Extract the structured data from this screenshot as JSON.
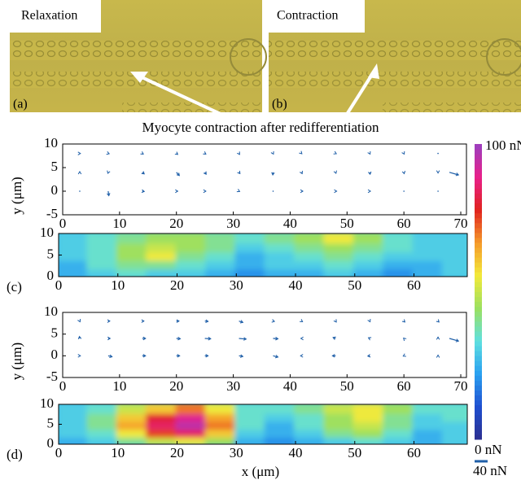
{
  "title": "Myocyte contraction after redifferentiation",
  "photos": [
    {
      "label": "Relaxation",
      "tag": "(a)"
    },
    {
      "label": "Contraction",
      "tag": "(b)"
    }
  ],
  "chart_data": [
    {
      "type": "quiver",
      "ylabel": "y (μm)",
      "color": "#1f5fa8",
      "xlim": [
        0,
        71
      ],
      "ylim": [
        -5,
        10
      ],
      "xticks": [
        0,
        10,
        20,
        30,
        40,
        50,
        60,
        70
      ],
      "yticks": [
        -5,
        0,
        5,
        10
      ],
      "x": [
        3,
        8,
        14,
        20,
        25,
        31,
        37,
        42,
        48,
        54,
        60,
        66,
        3,
        8,
        14,
        20,
        25,
        31,
        37,
        42,
        48,
        54,
        60,
        66,
        3,
        8,
        14,
        20,
        25,
        31,
        37,
        42,
        48,
        54,
        60,
        66,
        68
      ],
      "y": [
        8,
        8,
        8,
        8,
        8,
        8,
        8,
        8,
        8,
        8,
        8,
        8,
        4,
        4,
        4,
        4,
        4,
        4,
        4,
        4,
        4,
        4,
        4,
        4,
        0,
        0,
        0,
        0,
        0,
        0,
        0,
        0,
        0,
        0,
        0,
        0,
        4
      ],
      "u": [
        2,
        3,
        3,
        4,
        3,
        2,
        1,
        1,
        2,
        1,
        1,
        0,
        0,
        -1,
        6,
        9,
        4,
        3,
        -1,
        2,
        1,
        1,
        1,
        0,
        1,
        2,
        6,
        4,
        3,
        2,
        1,
        4,
        3,
        2,
        1,
        1,
        28
      ],
      "v": [
        0,
        -1,
        -2,
        -3,
        -2,
        -3,
        -2,
        -1,
        -1,
        -2,
        -2,
        -1,
        2,
        -3,
        -5,
        -10,
        -6,
        -4,
        -8,
        -4,
        -3,
        -6,
        -4,
        -2,
        0,
        -14,
        -1,
        0,
        0,
        -1,
        0,
        0,
        0,
        0,
        0,
        0,
        -8
      ]
    },
    {
      "type": "heatmap",
      "panel": "(c)",
      "xlim": [
        0,
        69
      ],
      "ylim": [
        0,
        10
      ],
      "xticks": [
        0,
        10,
        20,
        30,
        40,
        50,
        60
      ],
      "yticks": [
        0,
        5,
        10
      ],
      "x": [
        2.5,
        7.5,
        12.5,
        17.5,
        22.5,
        27.5,
        32.5,
        37.5,
        42.5,
        47.5,
        52.5,
        57.5,
        62.5,
        67.5
      ],
      "y": [
        1,
        3,
        5,
        7,
        9
      ],
      "z": [
        [
          25,
          30,
          35,
          30,
          30,
          25,
          20,
          25,
          25,
          30,
          25,
          20,
          25,
          30
        ],
        [
          25,
          35,
          40,
          40,
          35,
          30,
          25,
          30,
          30,
          35,
          30,
          25,
          25,
          30
        ],
        [
          30,
          35,
          45,
          55,
          40,
          35,
          25,
          30,
          35,
          40,
          35,
          30,
          30,
          30
        ],
        [
          30,
          35,
          45,
          50,
          45,
          40,
          30,
          35,
          40,
          45,
          40,
          35,
          30,
          30
        ],
        [
          30,
          35,
          40,
          45,
          45,
          40,
          35,
          40,
          45,
          55,
          45,
          35,
          30,
          30
        ]
      ]
    },
    {
      "type": "quiver",
      "ylabel": "y (μm)",
      "color": "#1f5fa8",
      "xlim": [
        0,
        71
      ],
      "ylim": [
        -5,
        10
      ],
      "xticks": [
        0,
        10,
        20,
        30,
        40,
        50,
        60,
        70
      ],
      "yticks": [
        -5,
        0,
        5,
        10
      ],
      "x": [
        3,
        8,
        14,
        20,
        25,
        31,
        37,
        42,
        48,
        54,
        60,
        66,
        3,
        8,
        14,
        20,
        25,
        31,
        37,
        42,
        48,
        54,
        60,
        66,
        3,
        8,
        14,
        20,
        25,
        31,
        37,
        42,
        48,
        54,
        60,
        66,
        68
      ],
      "y": [
        8,
        8,
        8,
        8,
        8,
        8,
        8,
        8,
        8,
        8,
        8,
        8,
        4,
        4,
        4,
        4,
        4,
        4,
        4,
        4,
        4,
        4,
        4,
        4,
        0,
        0,
        0,
        0,
        0,
        0,
        0,
        0,
        0,
        0,
        0,
        0,
        4
      ],
      "u": [
        1,
        5,
        5,
        8,
        10,
        12,
        4,
        3,
        2,
        1,
        3,
        3,
        -1,
        6,
        10,
        12,
        18,
        22,
        15,
        -2,
        -8,
        -4,
        -1,
        0,
        2,
        12,
        10,
        10,
        10,
        12,
        15,
        -3,
        -10,
        -6,
        -2,
        0,
        28
      ],
      "v": [
        -2,
        0,
        0,
        0,
        -1,
        -4,
        -1,
        -2,
        -3,
        -2,
        -3,
        -3,
        6,
        0,
        0,
        -1,
        -1,
        -2,
        -1,
        0,
        3,
        2,
        1,
        4,
        0,
        -3,
        0,
        0,
        0,
        -2,
        -4,
        0,
        0,
        -1,
        -1,
        2,
        -8
      ]
    },
    {
      "type": "heatmap",
      "panel": "(d)",
      "xlabel": "x (μm)",
      "xlim": [
        0,
        69
      ],
      "ylim": [
        0,
        10
      ],
      "xticks": [
        0,
        10,
        20,
        30,
        40,
        50,
        60
      ],
      "yticks": [
        0,
        5,
        10
      ],
      "x": [
        2.5,
        7.5,
        12.5,
        17.5,
        22.5,
        27.5,
        32.5,
        37.5,
        42.5,
        47.5,
        52.5,
        57.5,
        62.5,
        67.5
      ],
      "y": [
        1,
        3,
        5,
        7,
        9
      ],
      "z": [
        [
          25,
          30,
          40,
          50,
          55,
          45,
          25,
          20,
          25,
          30,
          35,
          30,
          25,
          30
        ],
        [
          30,
          35,
          55,
          75,
          85,
          60,
          30,
          25,
          30,
          40,
          45,
          35,
          25,
          30
        ],
        [
          30,
          40,
          65,
          85,
          95,
          70,
          35,
          25,
          35,
          45,
          50,
          40,
          30,
          30
        ],
        [
          30,
          40,
          60,
          80,
          90,
          65,
          35,
          30,
          35,
          45,
          55,
          40,
          30,
          35
        ],
        [
          30,
          35,
          50,
          60,
          70,
          55,
          35,
          35,
          40,
          50,
          55,
          45,
          35,
          35
        ]
      ]
    },
    {
      "type": "colorbar",
      "ylim": [
        0,
        100
      ],
      "yticks": [
        {
          "value": 0,
          "label": "0 nN"
        },
        {
          "value": 100,
          "label": "100 nN"
        }
      ],
      "colors": [
        "#2c2f8f",
        "#1f4fd0",
        "#2aa0f0",
        "#5fe0e0",
        "#9be060",
        "#f2e93a",
        "#f59a2a",
        "#e0231f",
        "#e8208a",
        "#9b3fc0"
      ],
      "scale": {
        "value": 40,
        "label": "40 nN"
      }
    }
  ]
}
